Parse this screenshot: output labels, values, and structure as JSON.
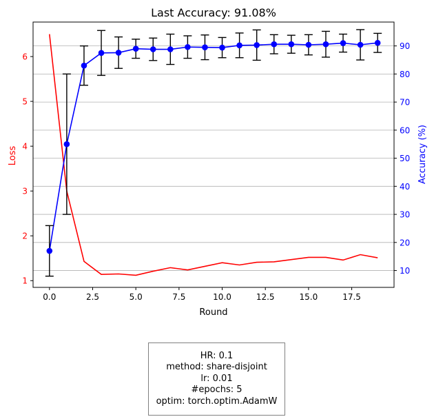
{
  "chart_data": {
    "type": "line",
    "title": "Last Accuracy: 91.08%",
    "xlabel": "Round",
    "ylabel_left": "Loss",
    "ylabel_right": "Accuracy (%)",
    "x": [
      0,
      1,
      2,
      3,
      4,
      5,
      6,
      7,
      8,
      9,
      10,
      11,
      12,
      13,
      14,
      15,
      16,
      17,
      18,
      19
    ],
    "xlim": [
      -0.95,
      19.95
    ],
    "xticks": [
      0.0,
      2.5,
      5.0,
      7.5,
      10.0,
      12.5,
      15.0,
      17.5
    ],
    "xtick_labels": [
      "0.0",
      "2.5",
      "5.0",
      "7.5",
      "10.0",
      "12.5",
      "15.0",
      "17.5"
    ],
    "ylim_left": [
      0.85,
      6.77
    ],
    "yticks_left": [
      1,
      2,
      3,
      4,
      5,
      6
    ],
    "ytick_labels_left": [
      "1",
      "2",
      "3",
      "4",
      "5",
      "6"
    ],
    "ylim_right": [
      4.0,
      98.5
    ],
    "yticks_right": [
      10,
      20,
      30,
      40,
      50,
      60,
      70,
      80,
      90
    ],
    "ytick_labels_right": [
      "10",
      "20",
      "30",
      "40",
      "50",
      "60",
      "70",
      "80",
      "90"
    ],
    "grid": "horizontal, right axis",
    "series": [
      {
        "name": "Loss",
        "axis": "left",
        "color": "#ff0000",
        "values": [
          6.5,
          3.0,
          1.43,
          1.14,
          1.15,
          1.12,
          1.21,
          1.29,
          1.24,
          1.32,
          1.4,
          1.35,
          1.41,
          1.42,
          1.47,
          1.52,
          1.52,
          1.46,
          1.58,
          1.51
        ]
      },
      {
        "name": "Accuracy",
        "axis": "right",
        "color": "#0000ff",
        "marker": "circle",
        "values": [
          17.0,
          55.0,
          83.0,
          87.5,
          87.6,
          89.0,
          88.8,
          88.8,
          89.6,
          89.5,
          89.4,
          90.2,
          90.3,
          90.6,
          90.6,
          90.4,
          90.6,
          91.0,
          90.4,
          91.08
        ],
        "error": [
          9.0,
          25.0,
          7.0,
          8.0,
          5.6,
          3.4,
          4.0,
          5.4,
          4.0,
          4.4,
          3.6,
          4.4,
          5.4,
          3.4,
          3.2,
          3.6,
          4.6,
          3.2,
          5.4,
          3.4
        ]
      }
    ]
  },
  "info_box": {
    "lines": [
      "HR: 0.1",
      "method: share-disjoint",
      "lr: 0.01",
      "#epochs: 5",
      "optim: torch.optim.AdamW"
    ]
  }
}
